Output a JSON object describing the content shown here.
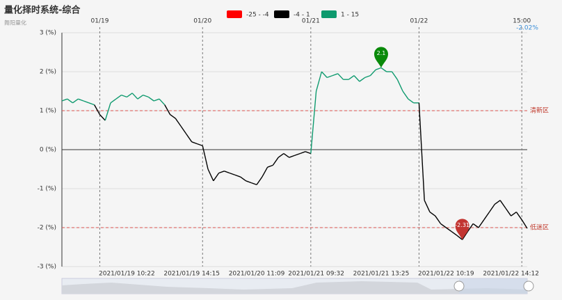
{
  "chart_data": {
    "type": "line",
    "title": "量化择时系统-综合",
    "subtitle": "舞阳量化",
    "pieces": [
      {
        "min": -25,
        "max": -4,
        "label": "-25 - -4",
        "color": "#ff0000"
      },
      {
        "min": -4,
        "max": 1,
        "label": "-4 - 1",
        "color": "#000000"
      },
      {
        "min": 1,
        "max": 15,
        "label": "1 - 15",
        "color": "#0e9a6e"
      }
    ],
    "categories": [
      null,
      null,
      null,
      null,
      null,
      null,
      null,
      null,
      null,
      null,
      null,
      null,
      "2021/01/19 10:22",
      null,
      null,
      null,
      null,
      null,
      null,
      null,
      null,
      null,
      null,
      null,
      "2021/01/19 14:15",
      null,
      null,
      null,
      null,
      null,
      null,
      null,
      null,
      null,
      null,
      null,
      "2021/01/20 11:09",
      null,
      null,
      null,
      null,
      null,
      null,
      null,
      null,
      null,
      null,
      "2021/01/21 09:32",
      null,
      null,
      null,
      null,
      null,
      null,
      null,
      null,
      null,
      null,
      null,
      "2021/01/21 13:25",
      null,
      null,
      null,
      null,
      null,
      null,
      null,
      null,
      null,
      null,
      null,
      "2021/01/22 10:19",
      null,
      null,
      null,
      null,
      null,
      null,
      null,
      null,
      null,
      null,
      null,
      "2021/01/22 14:12",
      null,
      null,
      null
    ],
    "categories_top": [
      null,
      null,
      null,
      null,
      null,
      null,
      null,
      "01/19",
      null,
      null,
      null,
      null,
      null,
      null,
      null,
      null,
      null,
      null,
      null,
      null,
      null,
      null,
      null,
      null,
      null,
      null,
      "01/20",
      null,
      null,
      null,
      null,
      null,
      null,
      null,
      null,
      null,
      null,
      null,
      null,
      null,
      null,
      null,
      null,
      null,
      null,
      null,
      "01/21",
      null,
      null,
      null,
      null,
      null,
      null,
      null,
      null,
      null,
      null,
      null,
      null,
      null,
      null,
      null,
      null,
      null,
      null,
      null,
      "01/22",
      null,
      null,
      null,
      null,
      null,
      null,
      null,
      null,
      null,
      null,
      null,
      null,
      null,
      null,
      null,
      null,
      null,
      null,
      "15:00"
    ],
    "last_label": "-2.02%",
    "series": [
      {
        "name": "综合",
        "values": [
          1.25,
          1.3,
          1.2,
          1.3,
          1.25,
          1.2,
          1.15,
          0.9,
          0.75,
          1.2,
          1.3,
          1.4,
          1.35,
          1.45,
          1.3,
          1.4,
          1.35,
          1.25,
          1.3,
          1.15,
          0.9,
          0.8,
          0.6,
          0.4,
          0.2,
          0.15,
          0.1,
          -0.5,
          -0.8,
          -0.6,
          -0.55,
          -0.6,
          -0.65,
          -0.7,
          -0.8,
          -0.85,
          -0.9,
          -0.7,
          -0.45,
          -0.4,
          -0.2,
          -0.1,
          -0.2,
          -0.15,
          -0.1,
          -0.05,
          -0.1,
          1.5,
          2.0,
          1.85,
          1.9,
          1.95,
          1.8,
          1.8,
          1.9,
          1.75,
          1.85,
          1.9,
          2.05,
          2.1,
          2.0,
          2.0,
          1.8,
          1.5,
          1.3,
          1.2,
          1.2,
          -1.3,
          -1.6,
          -1.7,
          -1.9,
          -2.0,
          -2.1,
          -2.2,
          -2.31,
          -2.1,
          -1.9,
          -2.0,
          -1.8,
          -1.6,
          -1.4,
          -1.3,
          -1.5,
          -1.7,
          -1.6,
          -1.8,
          -2.02
        ]
      }
    ],
    "mark_points": [
      59,
      74
    ],
    "mark_lines": [
      {
        "value": 1,
        "label": "清新区"
      },
      {
        "value": -2,
        "label": "低迷区"
      }
    ],
    "ylim": [
      -3,
      3
    ],
    "yticks": [
      {
        "value": -3,
        "label": "-3 (%)"
      },
      {
        "value": -2,
        "label": "-2 (%)"
      },
      {
        "value": -1,
        "label": "-1 (%)"
      },
      {
        "value": 0,
        "label": "0 (%)"
      },
      {
        "value": 1,
        "label": "1 (%)"
      },
      {
        "value": 2,
        "label": "2 (%)"
      },
      {
        "value": 3,
        "label": "3 (%)"
      }
    ],
    "grid": true
  }
}
